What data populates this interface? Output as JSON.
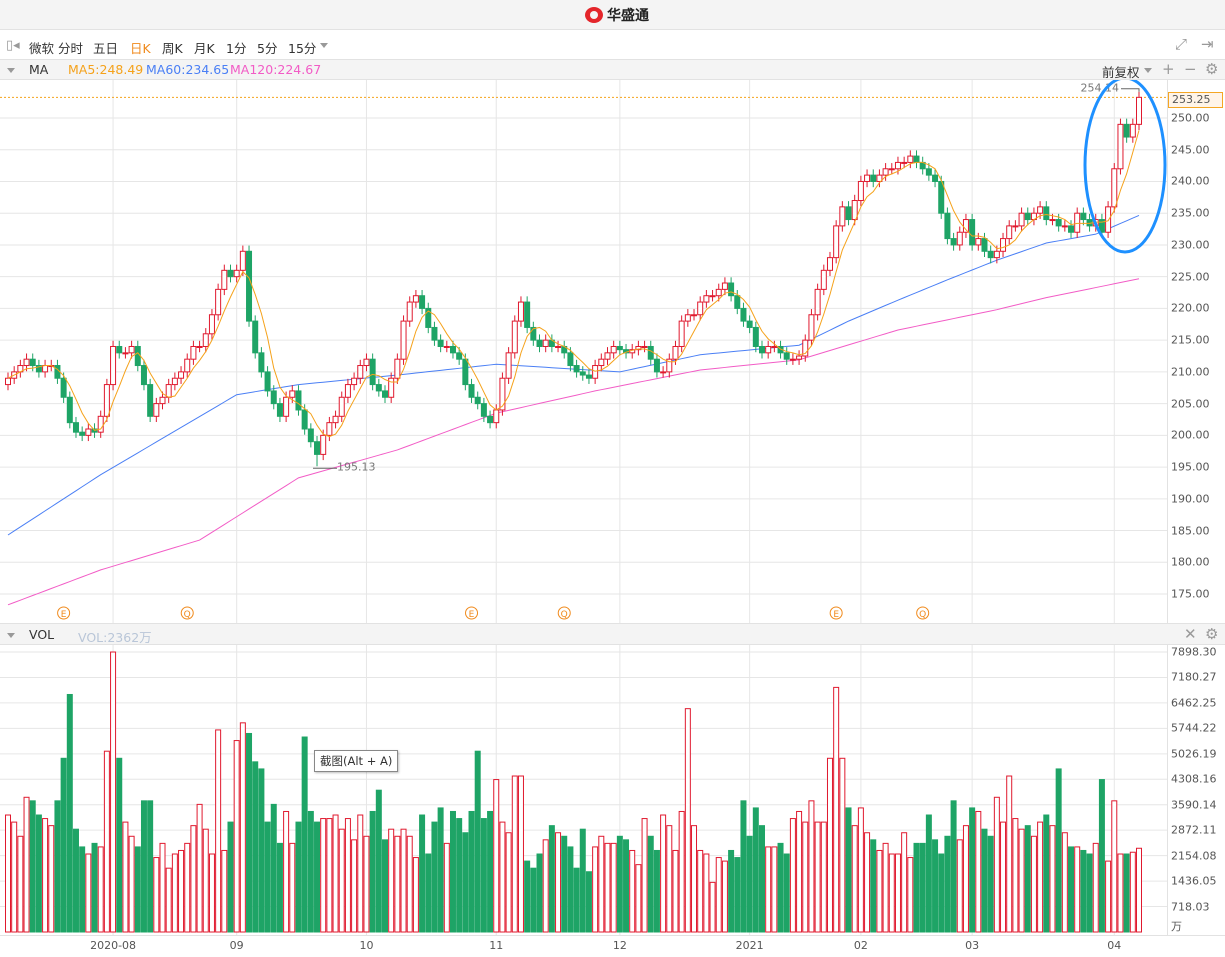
{
  "app": {
    "title": "华盛通"
  },
  "toolbar": {
    "stock_name": "微软",
    "periods": [
      "分时",
      "五日",
      "日K",
      "周K",
      "月K",
      "1分",
      "5分",
      "15分"
    ],
    "active_period": "日K"
  },
  "ma_header": {
    "label": "MA",
    "ma5": "MA5:248.49",
    "ma60": "MA60:234.65",
    "ma120": "MA120:224.67",
    "adjust": "前复权"
  },
  "vol_header": {
    "label": "VOL",
    "value": "VOL:2362万"
  },
  "tooltip": "截图(Alt + A)",
  "colors": {
    "up": "#e0192e",
    "down": "#1ea466",
    "ma5": "#f5a21b",
    "ma60": "#4a7ff5",
    "ma120": "#f25cc6",
    "annotation": "#1e90ff"
  },
  "chart_data": {
    "type": "candlestick",
    "price_axis": {
      "ticks": [
        "250.00",
        "245.00",
        "240.00",
        "235.00",
        "230.00",
        "225.00",
        "220.00",
        "215.00",
        "210.00",
        "205.00",
        "200.00",
        "195.00",
        "190.00",
        "185.00",
        "180.00",
        "175.00"
      ],
      "range": [
        172,
        255.5
      ]
    },
    "current_price": "253.25",
    "max_mark": {
      "index": 183,
      "label": "254.14",
      "value": 254.14
    },
    "min_mark": {
      "index": 50,
      "label": "195.13",
      "value": 195.13
    },
    "months": [
      {
        "index": 17,
        "label": "2020-08"
      },
      {
        "index": 37,
        "label": "09"
      },
      {
        "index": 58,
        "label": "10"
      },
      {
        "index": 79,
        "label": "11"
      },
      {
        "index": 99,
        "label": "12"
      },
      {
        "index": 120,
        "label": "2021"
      },
      {
        "index": 138,
        "label": "02"
      },
      {
        "index": 156,
        "label": "03"
      },
      {
        "index": 179,
        "label": "04"
      }
    ],
    "events": [
      {
        "index": 9,
        "label": "E"
      },
      {
        "index": 29,
        "label": "Q"
      },
      {
        "index": 75,
        "label": "E"
      },
      {
        "index": 90,
        "label": "Q"
      },
      {
        "index": 134,
        "label": "E"
      },
      {
        "index": 148,
        "label": "Q"
      }
    ],
    "close": [
      209,
      210,
      211,
      212,
      211,
      210,
      211,
      211,
      209,
      206,
      202,
      200.5,
      200,
      201,
      200.5,
      203,
      208,
      214,
      213,
      213,
      214,
      211,
      208,
      203,
      205,
      206,
      208,
      209,
      210,
      212,
      214,
      214,
      216,
      219,
      223,
      226,
      225,
      226,
      229,
      218,
      213,
      210,
      207,
      205,
      203,
      206,
      207,
      204,
      201,
      199,
      197,
      200,
      202,
      203,
      206,
      208,
      209,
      211,
      212,
      208,
      207,
      206,
      209,
      212,
      218,
      221,
      222,
      220,
      217,
      215,
      214,
      214,
      213,
      212,
      208,
      206,
      205,
      203,
      202,
      204,
      209,
      213,
      218,
      221,
      217,
      215,
      214,
      215,
      214,
      214,
      213,
      211,
      210,
      209.5,
      209,
      211,
      212,
      213,
      214,
      213.5,
      213,
      213.5,
      214,
      214,
      212,
      210,
      210,
      212,
      214,
      218,
      219,
      219,
      221,
      222,
      222,
      223,
      224,
      222,
      220,
      218,
      217,
      214,
      213,
      214,
      214,
      213,
      212,
      212,
      212.5,
      215,
      219,
      223,
      226,
      228,
      233,
      236,
      234,
      237,
      240,
      241,
      240,
      241,
      242,
      242,
      243,
      243,
      244,
      243,
      242,
      241,
      240,
      235,
      231,
      230,
      232,
      234,
      230,
      231,
      229,
      228,
      229,
      231,
      233,
      233,
      235,
      234,
      235,
      236,
      234,
      234,
      233,
      233,
      232,
      235,
      234,
      233,
      234,
      232,
      236,
      242,
      249,
      247,
      249,
      253.25
    ],
    "ma60": [
      [
        0,
        184.3
      ],
      [
        15,
        193.8
      ],
      [
        37,
        206.4
      ],
      [
        47,
        208
      ],
      [
        63,
        209.5
      ],
      [
        79,
        211.2
      ],
      [
        99,
        210
      ],
      [
        112,
        212.7
      ],
      [
        128,
        214.2
      ],
      [
        136,
        218
      ],
      [
        144,
        221.3
      ],
      [
        152,
        224.5
      ],
      [
        160,
        227.6
      ],
      [
        168,
        230.3
      ],
      [
        176,
        231.7
      ],
      [
        183,
        234.65
      ]
    ],
    "ma120": [
      [
        0,
        173.3
      ],
      [
        15,
        178.8
      ],
      [
        31,
        183.5
      ],
      [
        47,
        193.3
      ],
      [
        63,
        197.7
      ],
      [
        79,
        203.5
      ],
      [
        95,
        207
      ],
      [
        112,
        210.3
      ],
      [
        128,
        211.9
      ],
      [
        144,
        216.6
      ],
      [
        160,
        219.8
      ],
      [
        168,
        221.7
      ],
      [
        183,
        224.67
      ]
    ],
    "volume_unit": "万",
    "volume_axis": {
      "ticks": [
        "7898.30",
        "7180.27",
        "6462.25",
        "5744.22",
        "5026.19",
        "4308.16",
        "3590.14",
        "2872.11",
        "2154.08",
        "1436.05",
        "718.03"
      ],
      "max": 7898.3
    },
    "volume": [
      3300,
      3100,
      2700,
      3800,
      3700,
      3300,
      3200,
      3000,
      3700,
      4900,
      6700,
      2900,
      2400,
      2200,
      2500,
      2400,
      5100,
      7898,
      4900,
      3100,
      2700,
      2400,
      3700,
      3700,
      2100,
      2500,
      1800,
      2200,
      2300,
      2500,
      3000,
      3600,
      2900,
      2200,
      5700,
      2300,
      3100,
      5400,
      5900,
      5600,
      4800,
      4600,
      3100,
      3600,
      2500,
      3400,
      2500,
      3100,
      5500,
      3400,
      3100,
      3200,
      3200,
      3300,
      2900,
      3200,
      2600,
      3300,
      2700,
      3400,
      4000,
      2600,
      2900,
      2700,
      2900,
      2700,
      2100,
      3300,
      2200,
      3100,
      3500,
      2500,
      3400,
      3200,
      2800,
      3400,
      5100,
      3200,
      3400,
      4300,
      3100,
      2800,
      4400,
      4400,
      2000,
      1800,
      2200,
      2600,
      3000,
      2800,
      2700,
      2400,
      1800,
      2900,
      1700,
      2400,
      2700,
      2500,
      2500,
      2700,
      2600,
      2300,
      1900,
      3200,
      2700,
      2300,
      3300,
      3000,
      2300,
      3400,
      6300,
      3000,
      2300,
      2200,
      1400,
      2100,
      2000,
      2300,
      2100,
      3700,
      2700,
      3500,
      3000,
      2400,
      2400,
      2500,
      2200,
      3200,
      3400,
      3100,
      3700,
      3100,
      3100,
      4900,
      6900,
      4900,
      3500,
      3000,
      3500,
      2800,
      2600,
      2300,
      2500,
      2200,
      2200,
      2800,
      2100,
      2500,
      2500,
      3300,
      2600,
      2200,
      2700,
      3700,
      2600,
      3000,
      3500,
      3400,
      2900,
      2700,
      3800,
      3100,
      4400,
      3200,
      2900,
      3000,
      2700,
      3100,
      3300,
      3000,
      4600,
      2800,
      2400,
      2400,
      2300,
      2200,
      2500,
      4300,
      2000,
      3700,
      2200,
      2200,
      2250,
      2362
    ]
  }
}
